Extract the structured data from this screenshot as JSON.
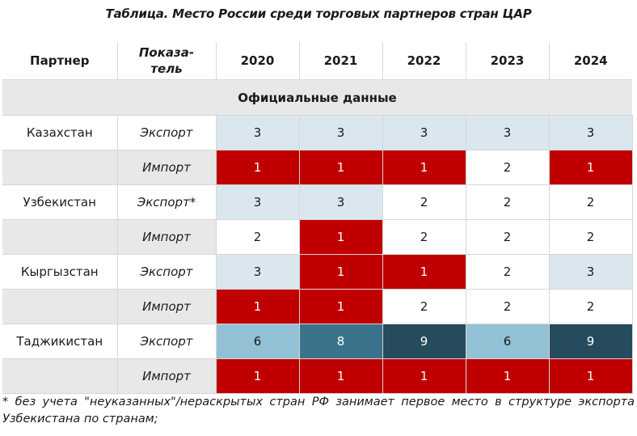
{
  "title": "Таблица. Место России среди торговых партнеров стран ЦАР",
  "header": {
    "partner": "Партнер",
    "indicator_line1": "Показа-",
    "indicator_line2": "тель",
    "years": [
      "2020",
      "2021",
      "2022",
      "2023",
      "2024"
    ]
  },
  "section_label": "Официальные данные",
  "colors": {
    "rank_1": "#c00000",
    "rank_2": "#ffffff",
    "rank_3": "#dae7ef",
    "rank_6": "#92c1d6",
    "rank_8": "#3a728c",
    "rank_9": "#254b5c",
    "light_text": "#ffffff",
    "dark_text": "#1a1a1a",
    "section_bg": "#e8e8e8"
  },
  "rows": [
    {
      "partner": "Казахстан",
      "indicator": "Экспорт",
      "values": [
        "3",
        "3",
        "3",
        "3",
        "3"
      ]
    },
    {
      "partner": "",
      "indicator": "Импорт",
      "values": [
        "1",
        "1",
        "1",
        "2",
        "1"
      ]
    },
    {
      "partner": "Узбекистан",
      "indicator": "Экспорт*",
      "values": [
        "3",
        "3",
        "2",
        "2",
        "2"
      ]
    },
    {
      "partner": "",
      "indicator": "Импорт",
      "values": [
        "2",
        "1",
        "2",
        "2",
        "2"
      ]
    },
    {
      "partner": "Кыргызстан",
      "indicator": "Экспорт",
      "values": [
        "3",
        "1",
        "1",
        "2",
        "3"
      ]
    },
    {
      "partner": "",
      "indicator": "Импорт",
      "values": [
        "1",
        "1",
        "2",
        "2",
        "2"
      ]
    },
    {
      "partner": "Таджикистан",
      "indicator": "Экспорт",
      "values": [
        "6",
        "8",
        "9",
        "6",
        "9"
      ]
    },
    {
      "partner": "",
      "indicator": "Импорт",
      "values": [
        "1",
        "1",
        "1",
        "1",
        "1"
      ]
    }
  ],
  "footnote": "* без учета \"неуказанных\"/нераскрытых стран РФ занимает первое место в структуре экспорта Узбекистана по странам;"
}
